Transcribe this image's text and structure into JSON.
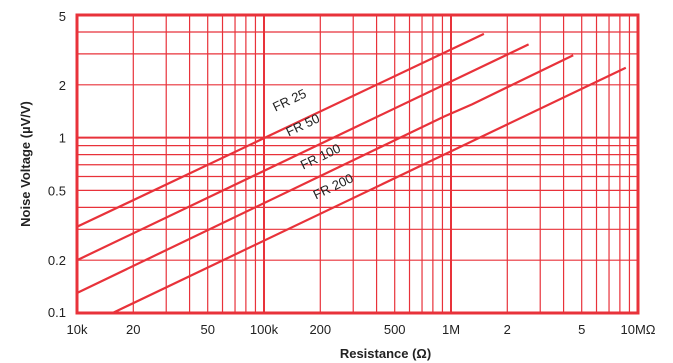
{
  "chart_data": {
    "type": "line",
    "title": "",
    "xlabel": "Resistance (Ω)",
    "ylabel": "Noise Voltage (µV/V)",
    "x_scale": "log",
    "y_scale": "log",
    "xlim": [
      10000,
      10000000
    ],
    "ylim": [
      0.1,
      5
    ],
    "grid": true,
    "legend": "none",
    "x_tick_labels": [
      {
        "value": 10000,
        "label": "10k"
      },
      {
        "value": 20000,
        "label": "20"
      },
      {
        "value": 50000,
        "label": "50"
      },
      {
        "value": 100000,
        "label": "100k"
      },
      {
        "value": 200000,
        "label": "200"
      },
      {
        "value": 500000,
        "label": "500"
      },
      {
        "value": 1000000,
        "label": "1M"
      },
      {
        "value": 2000000,
        "label": "2"
      },
      {
        "value": 5000000,
        "label": "5"
      },
      {
        "value": 10000000,
        "label": "10MΩ"
      }
    ],
    "y_tick_labels": [
      {
        "value": 0.1,
        "label": "0.1"
      },
      {
        "value": 0.2,
        "label": "0.2"
      },
      {
        "value": 0.5,
        "label": "0.5"
      },
      {
        "value": 1,
        "label": "1"
      },
      {
        "value": 2,
        "label": "2"
      },
      {
        "value": 5,
        "label": "5"
      }
    ],
    "series": [
      {
        "name": "FR 25",
        "x": [
          10000,
          1500000
        ],
        "y": [
          0.31,
          3.9
        ]
      },
      {
        "name": "FR 50",
        "x": [
          10000,
          2600000
        ],
        "y": [
          0.2,
          3.4
        ]
      },
      {
        "name": "FR 100",
        "x": [
          10000,
          920000,
          1300000,
          4500000
        ],
        "y": [
          0.13,
          1.32,
          1.55,
          2.95
        ]
      },
      {
        "name": "FR 200",
        "x": [
          15500,
          8600000
        ],
        "y": [
          0.1,
          2.5
        ]
      }
    ],
    "series_labels": [
      {
        "name": "FR 25",
        "text": "FR 25",
        "x": 140000,
        "y": 1.55
      },
      {
        "name": "FR 50",
        "text": "FR 50",
        "x": 165000,
        "y": 1.12
      },
      {
        "name": "FR 100",
        "text": "FR 100",
        "x": 205000,
        "y": 0.74
      },
      {
        "name": "FR 200",
        "text": "FR 200",
        "x": 240000,
        "y": 0.5
      }
    ],
    "colors": {
      "grid": "#e8323a",
      "series": "#e8323a",
      "text": "#222222"
    }
  }
}
